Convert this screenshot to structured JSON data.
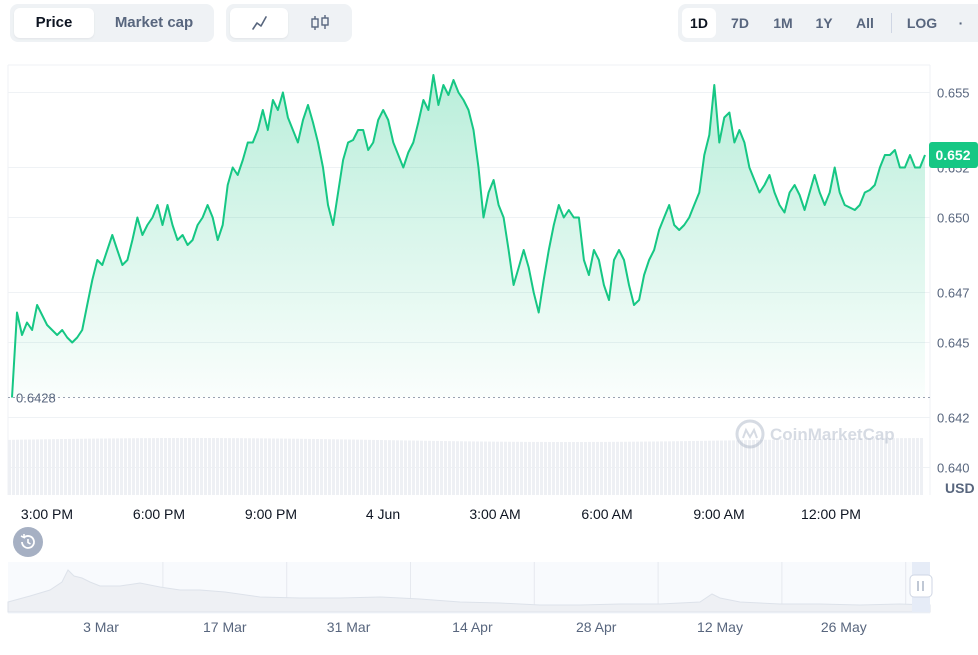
{
  "toolbar": {
    "view_tabs": [
      "Price",
      "Market cap"
    ],
    "active_view": "Price",
    "chart_modes": [
      "line-chart-icon",
      "candlestick-icon"
    ],
    "ranges": [
      "1D",
      "7D",
      "1M",
      "1Y",
      "All",
      "LOG"
    ],
    "active_range": "1D",
    "more": "·"
  },
  "watermark": "CoinMarketCap",
  "colors": {
    "line": "#16c784",
    "badge": "#16c784",
    "open_line": "#9aa3b2"
  },
  "chart_data": [
    {
      "type": "area",
      "currency": "USD",
      "open_price": 0.6428,
      "open_price_label": "0.6428",
      "last_price_label": "0.652",
      "x_ticks": [
        "3:00 PM",
        "6:00 PM",
        "9:00 PM",
        "4 Jun",
        "3:00 AM",
        "6:00 AM",
        "9:00 AM",
        "12:00 PM"
      ],
      "y_ticks": [
        "0.655",
        "0.652",
        "0.650",
        "0.647",
        "0.645",
        "0.642",
        "0.640"
      ],
      "ylim": [
        0.6395,
        0.6565
      ],
      "series": [
        {
          "values": [
            0.6428,
            0.6462,
            0.6453,
            0.6458,
            0.6455,
            0.6465,
            0.6461,
            0.6457,
            0.6455,
            0.6453,
            0.6455,
            0.6452,
            0.645,
            0.6452,
            0.6455,
            0.6465,
            0.6475,
            0.6483,
            0.6481,
            0.6487,
            0.6493,
            0.6487,
            0.6481,
            0.6483,
            0.6491,
            0.65,
            0.6493,
            0.6497,
            0.65,
            0.6505,
            0.6497,
            0.6505,
            0.6497,
            0.6491,
            0.6493,
            0.6489,
            0.6491,
            0.6497,
            0.65,
            0.6505,
            0.65,
            0.6491,
            0.6497,
            0.6513,
            0.652,
            0.6517,
            0.6523,
            0.653,
            0.653,
            0.6535,
            0.6543,
            0.6535,
            0.6547,
            0.6543,
            0.655,
            0.654,
            0.6535,
            0.653,
            0.6539,
            0.6545,
            0.6538,
            0.653,
            0.652,
            0.6505,
            0.6497,
            0.651,
            0.6523,
            0.653,
            0.6531,
            0.6535,
            0.6535,
            0.6527,
            0.653,
            0.6539,
            0.6543,
            0.6539,
            0.653,
            0.6525,
            0.652,
            0.6526,
            0.653,
            0.6538,
            0.6547,
            0.6543,
            0.6557,
            0.6545,
            0.6553,
            0.6549,
            0.6555,
            0.655,
            0.6547,
            0.6543,
            0.6535,
            0.652,
            0.65,
            0.651,
            0.6515,
            0.6505,
            0.65,
            0.6487,
            0.6473,
            0.648,
            0.6487,
            0.648,
            0.647,
            0.6462,
            0.6475,
            0.6487,
            0.6497,
            0.6505,
            0.65,
            0.6503,
            0.65,
            0.65,
            0.6483,
            0.6477,
            0.6487,
            0.6483,
            0.6473,
            0.6467,
            0.6483,
            0.6487,
            0.6483,
            0.6473,
            0.6465,
            0.6467,
            0.6477,
            0.6483,
            0.6487,
            0.6495,
            0.65,
            0.6505,
            0.6497,
            0.6495,
            0.6497,
            0.65,
            0.6505,
            0.651,
            0.6525,
            0.6533,
            0.6553,
            0.653,
            0.654,
            0.6542,
            0.653,
            0.6535,
            0.653,
            0.652,
            0.6515,
            0.651,
            0.6513,
            0.6517,
            0.651,
            0.6505,
            0.6502,
            0.651,
            0.6513,
            0.6509,
            0.6503,
            0.651,
            0.6517,
            0.651,
            0.6505,
            0.651,
            0.652,
            0.651,
            0.6505,
            0.6504,
            0.6503,
            0.6505,
            0.651,
            0.6511,
            0.6513,
            0.652,
            0.6525,
            0.6525,
            0.6527,
            0.652,
            0.652,
            0.6525,
            0.652,
            0.652,
            0.6525
          ]
        }
      ]
    },
    {
      "type": "area",
      "x_ticks": [
        "3 Mar",
        "17 Mar",
        "31 Mar",
        "14 Apr",
        "28 Apr",
        "12 May",
        "26 May"
      ]
    }
  ]
}
